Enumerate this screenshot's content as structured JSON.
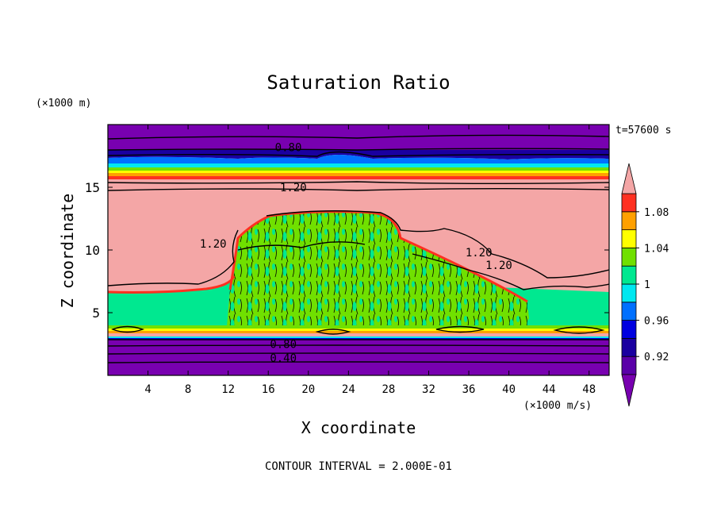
{
  "chart_data": {
    "type": "heatmap",
    "title": "Saturation Ratio",
    "xlabel": "X coordinate",
    "ylabel": "Z coordinate",
    "x_unit": "(×1000 m/s)",
    "y_unit": "(×1000 m)",
    "time_label": "t=57600 s",
    "footer": "CONTOUR INTERVAL = 2.000E-01",
    "xlim": [
      0,
      50
    ],
    "ylim": [
      0,
      20
    ],
    "x_ticks": [
      4,
      8,
      12,
      16,
      20,
      24,
      28,
      32,
      36,
      40,
      44,
      48
    ],
    "x_tick_labels": [
      "4",
      "8",
      "12",
      "16",
      "20",
      "24",
      "28",
      "32",
      "36",
      "40",
      "44",
      "48"
    ],
    "y_ticks": [
      5,
      10,
      15
    ],
    "y_tick_labels": [
      "5",
      "10",
      "15"
    ],
    "colorbar": {
      "levels": [
        0.9,
        0.92,
        0.94,
        0.96,
        0.98,
        1.0,
        1.02,
        1.04,
        1.06,
        1.08,
        1.1
      ],
      "labels": [
        {
          "value": 0.92,
          "text": "0.92"
        },
        {
          "value": 0.96,
          "text": "0.96"
        },
        {
          "value": 1.0,
          "text": "1"
        },
        {
          "value": 1.04,
          "text": "1.04"
        },
        {
          "value": 1.08,
          "text": "1.08"
        }
      ],
      "colors": [
        "#5a00a8",
        "#1a00a0",
        "#0000e0",
        "#0070ff",
        "#00e8f0",
        "#00e890",
        "#70e000",
        "#ffff00",
        "#ffa000",
        "#ff3020",
        "#f4a6a6",
        "#7800b0"
      ]
    },
    "regions": [
      {
        "level": 0.8,
        "z": [
          17.5,
          20.0
        ],
        "color": "#7800b0"
      },
      {
        "level": 0.92,
        "z": [
          16.9,
          17.5
        ],
        "color": "#1a00a0"
      },
      {
        "level": 0.96,
        "z": [
          16.5,
          16.9
        ],
        "color": "#00e8f0"
      },
      {
        "level": 1.04,
        "z": [
          16.0,
          16.5
        ],
        "color": "#ffa000"
      },
      {
        "level": 1.1,
        "z": [
          6.5,
          15.5
        ],
        "color": "#f4a6a6"
      },
      {
        "level": 1.0,
        "z": [
          3.0,
          6.5
        ],
        "color": "#00e890"
      },
      {
        "level": 0.9,
        "z": [
          0.0,
          3.0
        ],
        "color": "#7800b0"
      }
    ],
    "contour_labels": [
      {
        "x": 18.0,
        "z": 18.2,
        "text": "0.80"
      },
      {
        "x": 18.5,
        "z": 15.0,
        "text": "1.20"
      },
      {
        "x": 10.5,
        "z": 10.5,
        "text": "1.20"
      },
      {
        "x": 37.0,
        "z": 9.8,
        "text": "1.20"
      },
      {
        "x": 39.0,
        "z": 8.8,
        "text": "1.20"
      },
      {
        "x": 17.5,
        "z": 2.5,
        "text": "0.80"
      },
      {
        "x": 17.5,
        "z": 1.4,
        "text": "0.40"
      }
    ]
  }
}
